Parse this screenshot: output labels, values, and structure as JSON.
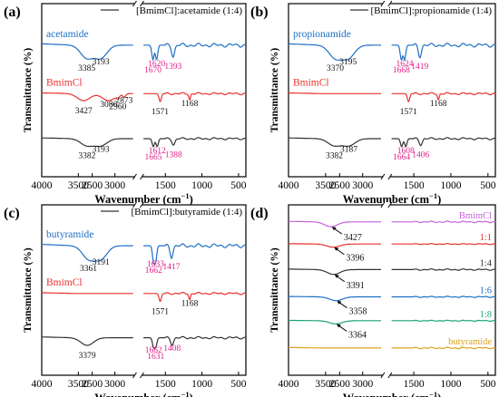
{
  "chart_data": [
    {
      "type": "line",
      "panel_label": "(a)",
      "legend": "[BmimCl]:acetamide (1:4)",
      "xlabel_text": "Wavenumber",
      "xlabel_unit": "(cm",
      "xlabel_sup": "−1",
      "xlabel_close": ")",
      "ylabel": "Transmittance (%)",
      "xlim": [
        4000,
        400
      ],
      "x_break": [
        2750,
        1800
      ],
      "xticks": [
        "4000",
        "3500",
        "3000",
        "2500",
        "1500",
        "1000",
        "500"
      ],
      "grid": false,
      "series": [
        {
          "name": "acetamide",
          "color": "#1f6fc6",
          "label_color": "#1f6fc6",
          "peaks": [
            {
              "wn": 3385,
              "label": "3385",
              "color": "#111111"
            },
            {
              "wn": 3193,
              "label": "3193",
              "color": "#111111"
            },
            {
              "wn": 1670,
              "label": "1670",
              "color": "#e0208a"
            },
            {
              "wn": 1620,
              "label": "1620",
              "color": "#e0208a"
            },
            {
              "wn": 1393,
              "label": "1393",
              "color": "#e0208a"
            }
          ]
        },
        {
          "name": "BmimCl",
          "color": "#e8302c",
          "label_color": "#e8302c",
          "peaks": [
            {
              "wn": 3427,
              "label": "3427",
              "color": "#111111"
            },
            {
              "wn": 3086,
              "label": "3086",
              "color": "#111111"
            },
            {
              "wn": 2960,
              "label": "2960",
              "color": "#111111"
            },
            {
              "wn": 2873,
              "label": "2873",
              "color": "#111111"
            },
            {
              "wn": 1571,
              "label": "1571",
              "color": "#111111"
            },
            {
              "wn": 1168,
              "label": "1168",
              "color": "#111111"
            }
          ]
        },
        {
          "name": "",
          "color": "#333333",
          "label_color": "#333333",
          "peaks": [
            {
              "wn": 3382,
              "label": "3382",
              "color": "#111111"
            },
            {
              "wn": 3193,
              "label": "3193",
              "color": "#111111"
            },
            {
              "wn": 1665,
              "label": "1665",
              "color": "#e0208a"
            },
            {
              "wn": 1612,
              "label": "1612",
              "color": "#e0208a"
            },
            {
              "wn": 1388,
              "label": "1388",
              "color": "#e0208a"
            }
          ]
        }
      ]
    },
    {
      "type": "line",
      "panel_label": "(b)",
      "legend": "[BmimCl]:propionamide (1:4)",
      "xlabel_text": "Wavenumber",
      "xlabel_unit": "(cm",
      "xlabel_sup": "−1",
      "xlabel_close": ")",
      "ylabel": "Transmittance (%)",
      "xlim": [
        4000,
        400
      ],
      "x_break": [
        2750,
        1800
      ],
      "xticks": [
        "4000",
        "3500",
        "3000",
        "2500",
        "1500",
        "1000",
        "500"
      ],
      "grid": false,
      "series": [
        {
          "name": "propionamide",
          "color": "#1f6fc6",
          "label_color": "#1f6fc6",
          "peaks": [
            {
              "wn": 3370,
              "label": "3370",
              "color": "#111111"
            },
            {
              "wn": 3195,
              "label": "3195",
              "color": "#111111"
            },
            {
              "wn": 1668,
              "label": "1668",
              "color": "#e0208a"
            },
            {
              "wn": 1624,
              "label": "1624",
              "color": "#e0208a"
            },
            {
              "wn": 1419,
              "label": "1419",
              "color": "#e0208a"
            }
          ]
        },
        {
          "name": "BmimCl",
          "color": "#e8302c",
          "label_color": "#e8302c",
          "peaks": [
            {
              "wn": 1571,
              "label": "1571",
              "color": "#111111"
            },
            {
              "wn": 1168,
              "label": "1168",
              "color": "#111111"
            }
          ]
        },
        {
          "name": "",
          "color": "#333333",
          "label_color": "#333333",
          "peaks": [
            {
              "wn": 3382,
              "label": "3382",
              "color": "#111111"
            },
            {
              "wn": 3187,
              "label": "3187",
              "color": "#111111"
            },
            {
              "wn": 1664,
              "label": "1664",
              "color": "#e0208a"
            },
            {
              "wn": 1608,
              "label": "1608",
              "color": "#e0208a"
            },
            {
              "wn": 1406,
              "label": "1406",
              "color": "#e0208a"
            }
          ]
        }
      ]
    },
    {
      "type": "line",
      "panel_label": "(c)",
      "legend": "[BmimCl]:butyramide (1:4)",
      "xlabel_text": "Wavenumber",
      "xlabel_unit": "(cm",
      "xlabel_sup": "−1",
      "xlabel_close": ")",
      "ylabel": "Transmittance (%)",
      "xlim": [
        4000,
        400
      ],
      "x_break": [
        2750,
        1800
      ],
      "xticks": [
        "4000",
        "3500",
        "3000",
        "2500",
        "1500",
        "1000",
        "500"
      ],
      "grid": false,
      "series": [
        {
          "name": "butyramide",
          "color": "#1f6fc6",
          "label_color": "#1f6fc6",
          "peaks": [
            {
              "wn": 3361,
              "label": "3361",
              "color": "#111111"
            },
            {
              "wn": 3191,
              "label": "3191",
              "color": "#111111"
            },
            {
              "wn": 1662,
              "label": "1662",
              "color": "#e0208a"
            },
            {
              "wn": 1633,
              "label": "1633",
              "color": "#e0208a"
            },
            {
              "wn": 1417,
              "label": "1417",
              "color": "#e0208a"
            }
          ]
        },
        {
          "name": "BmimCl",
          "color": "#e8302c",
          "label_color": "#e8302c",
          "peaks": [
            {
              "wn": 1571,
              "label": "1571",
              "color": "#111111"
            },
            {
              "wn": 1168,
              "label": "1168",
              "color": "#111111"
            }
          ]
        },
        {
          "name": "",
          "color": "#333333",
          "label_color": "#333333",
          "peaks": [
            {
              "wn": 3379,
              "label": "3379",
              "color": "#111111"
            },
            {
              "wn": 1662,
              "label": "1662",
              "color": "#e0208a"
            },
            {
              "wn": 1631,
              "label": "1631",
              "color": "#e0208a"
            },
            {
              "wn": 1408,
              "label": "1408",
              "color": "#e0208a"
            }
          ]
        }
      ]
    },
    {
      "type": "line",
      "panel_label": "(d)",
      "legend": "",
      "xlabel_text": "Wavenumber",
      "xlabel_unit": "(cm",
      "xlabel_sup": "−1",
      "xlabel_close": ")",
      "ylabel": "Transmittance (%)",
      "xlim": [
        4000,
        400
      ],
      "x_break": [
        2750,
        1800
      ],
      "xticks": [
        "4000",
        "3500",
        "3000",
        "2500",
        "1500",
        "1000",
        "500"
      ],
      "grid": false,
      "series": [
        {
          "name": "BmimCl",
          "color": "#c462d8",
          "label_color": "#c462d8",
          "peaks": [
            {
              "wn": 3427,
              "label": "3427",
              "color": "#111111"
            }
          ]
        },
        {
          "name": "1:1",
          "color": "#e8302c",
          "label_color": "#e8302c",
          "peaks": [
            {
              "wn": 3396,
              "label": "3396",
              "color": "#111111"
            }
          ]
        },
        {
          "name": "1:4",
          "color": "#333333",
          "label_color": "#333333",
          "peaks": [
            {
              "wn": 3391,
              "label": "3391",
              "color": "#111111"
            }
          ]
        },
        {
          "name": "1:6",
          "color": "#1f6fc6",
          "label_color": "#1f6fc6",
          "peaks": [
            {
              "wn": 3358,
              "label": "3358",
              "color": "#111111"
            }
          ]
        },
        {
          "name": "1:8",
          "color": "#1aa37a",
          "label_color": "#1aa37a",
          "peaks": [
            {
              "wn": 3364,
              "label": "3364",
              "color": "#111111"
            }
          ]
        },
        {
          "name": "butyramide",
          "color": "#d9a21b",
          "label_color": "#d9a21b",
          "peaks": []
        }
      ]
    }
  ]
}
